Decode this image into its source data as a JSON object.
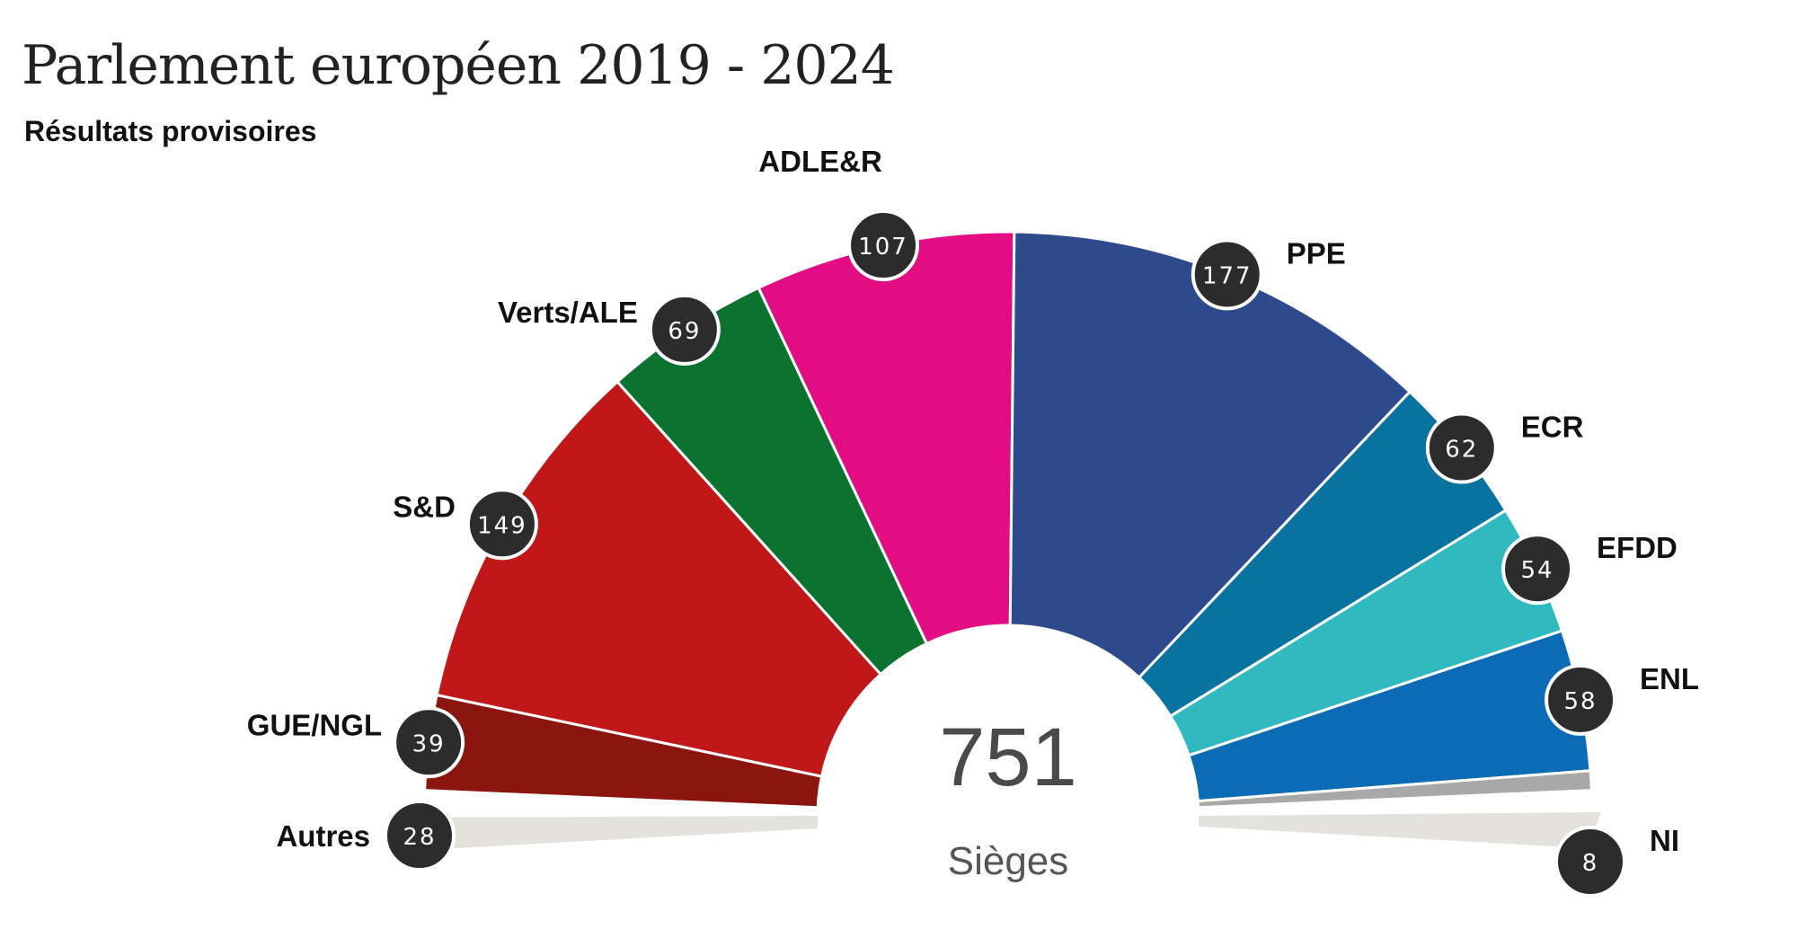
{
  "chart_data": {
    "type": "pie",
    "title": "Parlement européen 2019 - 2024",
    "subtitle": "Résultats provisoires",
    "total": {
      "value": "751",
      "label": "Sièges"
    },
    "groups": [
      {
        "name": "Autres",
        "seats": 28,
        "color": "#e4e2dd",
        "offchart": true
      },
      {
        "name": "GUE/NGL",
        "seats": 39,
        "color": "#8b1610"
      },
      {
        "name": "S&D",
        "seats": 149,
        "color": "#c01818"
      },
      {
        "name": "Verts/ALE",
        "seats": 69,
        "color": "#0c7230"
      },
      {
        "name": "ADLE&R",
        "seats": 107,
        "color": "#e20d82"
      },
      {
        "name": "PPE",
        "seats": 177,
        "color": "#2d4a8c"
      },
      {
        "name": "ECR",
        "seats": 62,
        "color": "#07739e"
      },
      {
        "name": "EFDD",
        "seats": 54,
        "color": "#30b9bf"
      },
      {
        "name": "ENL",
        "seats": 58,
        "color": "#0c6bb5"
      },
      {
        "name": "NI",
        "seats": 8,
        "color": "#a8a8a8"
      }
    ],
    "badge_color": "#2c2c2c"
  }
}
